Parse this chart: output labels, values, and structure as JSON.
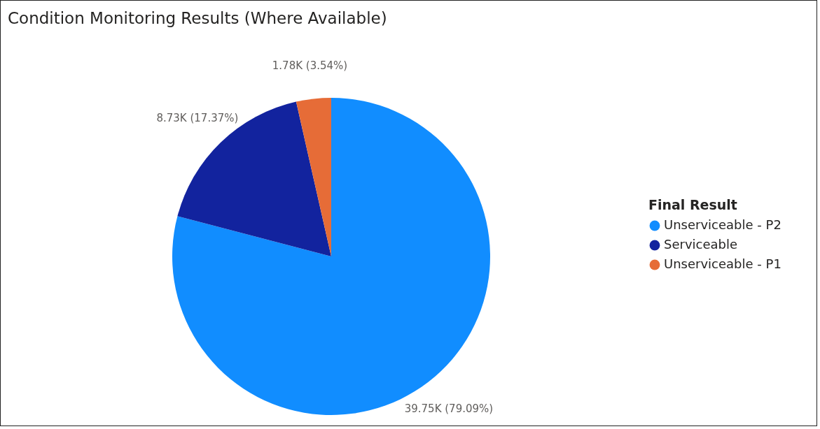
{
  "chart_data": {
    "type": "pie",
    "title": "Condition Monitoring Results (Where Available)",
    "legend_title": "Final Result",
    "categories": [
      "Unserviceable - P2",
      "Serviceable",
      "Unserviceable - P1"
    ],
    "values": [
      39750,
      8730,
      1780
    ],
    "value_labels": [
      "39.75K (79.09%)",
      "8.73K (17.37%)",
      "1.78K (3.54%)"
    ],
    "colors": [
      "#118dff",
      "#12239e",
      "#e66c37"
    ],
    "legend": "right"
  }
}
